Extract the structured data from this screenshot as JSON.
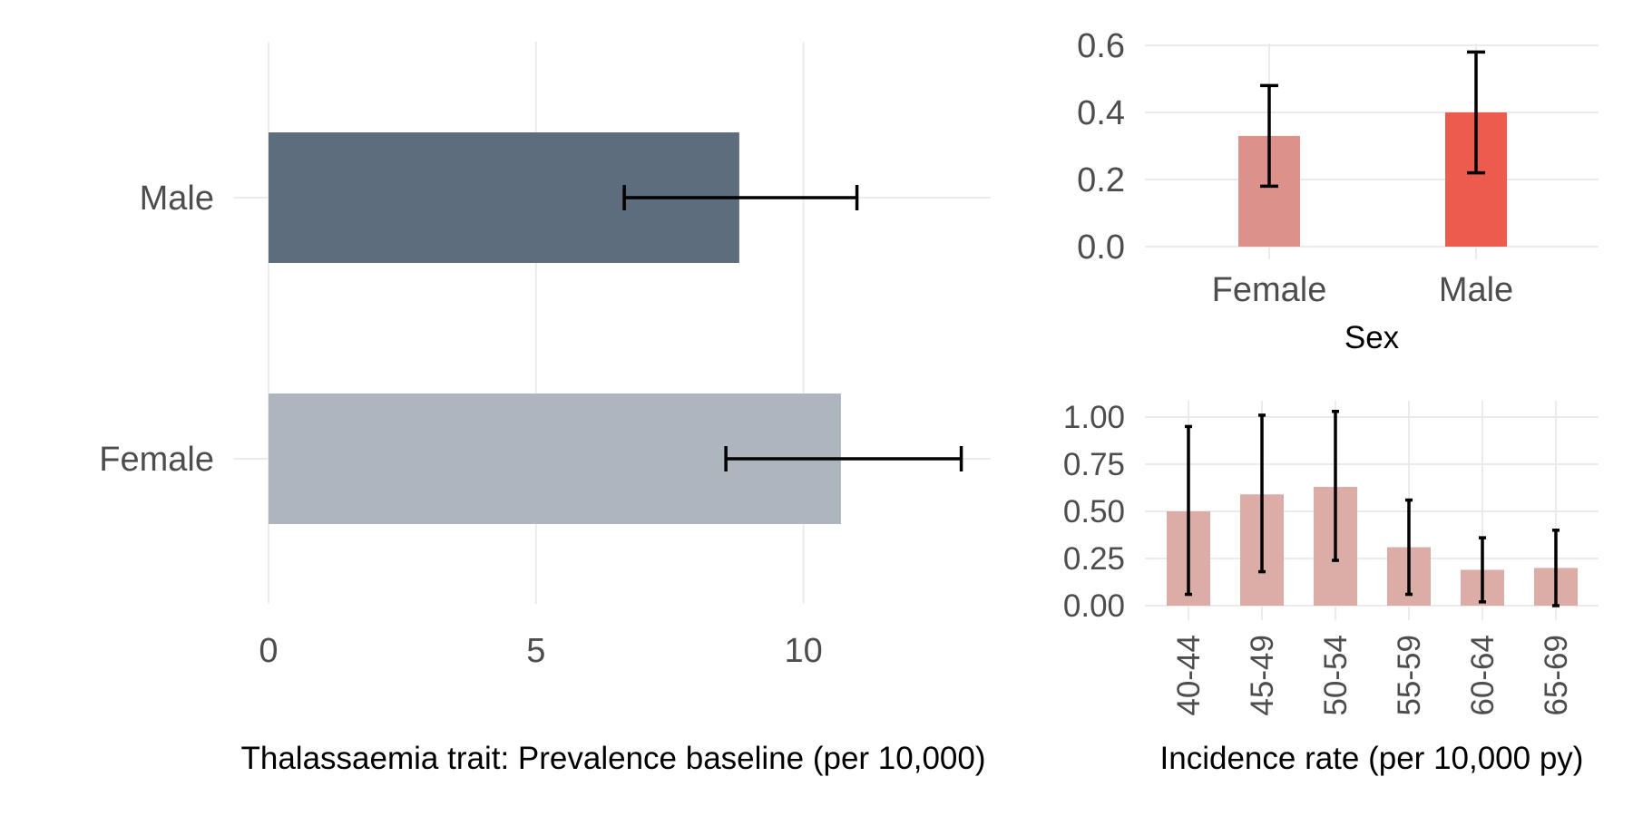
{
  "chart_data": [
    {
      "id": "prevalence",
      "type": "bar",
      "orientation": "horizontal",
      "categories": [
        "Male",
        "Female"
      ],
      "values": [
        8.8,
        10.7
      ],
      "ci_low": [
        6.65,
        8.55
      ],
      "ci_high": [
        11.0,
        12.95
      ],
      "colors": [
        "#5d6d7e",
        "#adb5bf"
      ],
      "xlabel": "Thalassaemia trait: Prevalence baseline (per 10,000)",
      "ylabel": "",
      "xlim": [
        0,
        13.5
      ],
      "xticks": [
        0,
        5,
        10
      ],
      "xtick_labels": [
        "0",
        "5",
        "10"
      ],
      "grid": true
    },
    {
      "id": "incidence-sex",
      "type": "bar",
      "categories": [
        "Female",
        "Male"
      ],
      "values": [
        0.33,
        0.4
      ],
      "ci_low": [
        0.18,
        0.22
      ],
      "ci_high": [
        0.48,
        0.58
      ],
      "colors": [
        "#dc918b",
        "#ec5b4b"
      ],
      "xlabel": "Sex",
      "ylabel": "",
      "ylim": [
        0,
        0.6
      ],
      "yticks": [
        0,
        0.2,
        0.4,
        0.6
      ],
      "ytick_labels": [
        "0.0",
        "0.2",
        "0.4",
        "0.6"
      ],
      "grid": true
    },
    {
      "id": "incidence-age",
      "type": "bar",
      "categories": [
        "40-44",
        "45-49",
        "50-54",
        "55-59",
        "60-64",
        "65-69"
      ],
      "values": [
        0.5,
        0.59,
        0.63,
        0.31,
        0.19,
        0.2
      ],
      "ci_low": [
        0.06,
        0.18,
        0.24,
        0.06,
        0.02,
        0.0
      ],
      "ci_high": [
        0.95,
        1.01,
        1.03,
        0.56,
        0.36,
        0.4
      ],
      "colors": [
        "#dcaca6"
      ],
      "xlabel": "Incidence rate (per 10,000 py)",
      "ylabel": "",
      "ylim": [
        0,
        1.0
      ],
      "yticks": [
        0,
        0.25,
        0.5,
        0.75,
        1.0
      ],
      "ytick_labels": [
        "0.00",
        "0.25",
        "0.50",
        "0.75",
        "1.00"
      ],
      "grid": true
    }
  ]
}
